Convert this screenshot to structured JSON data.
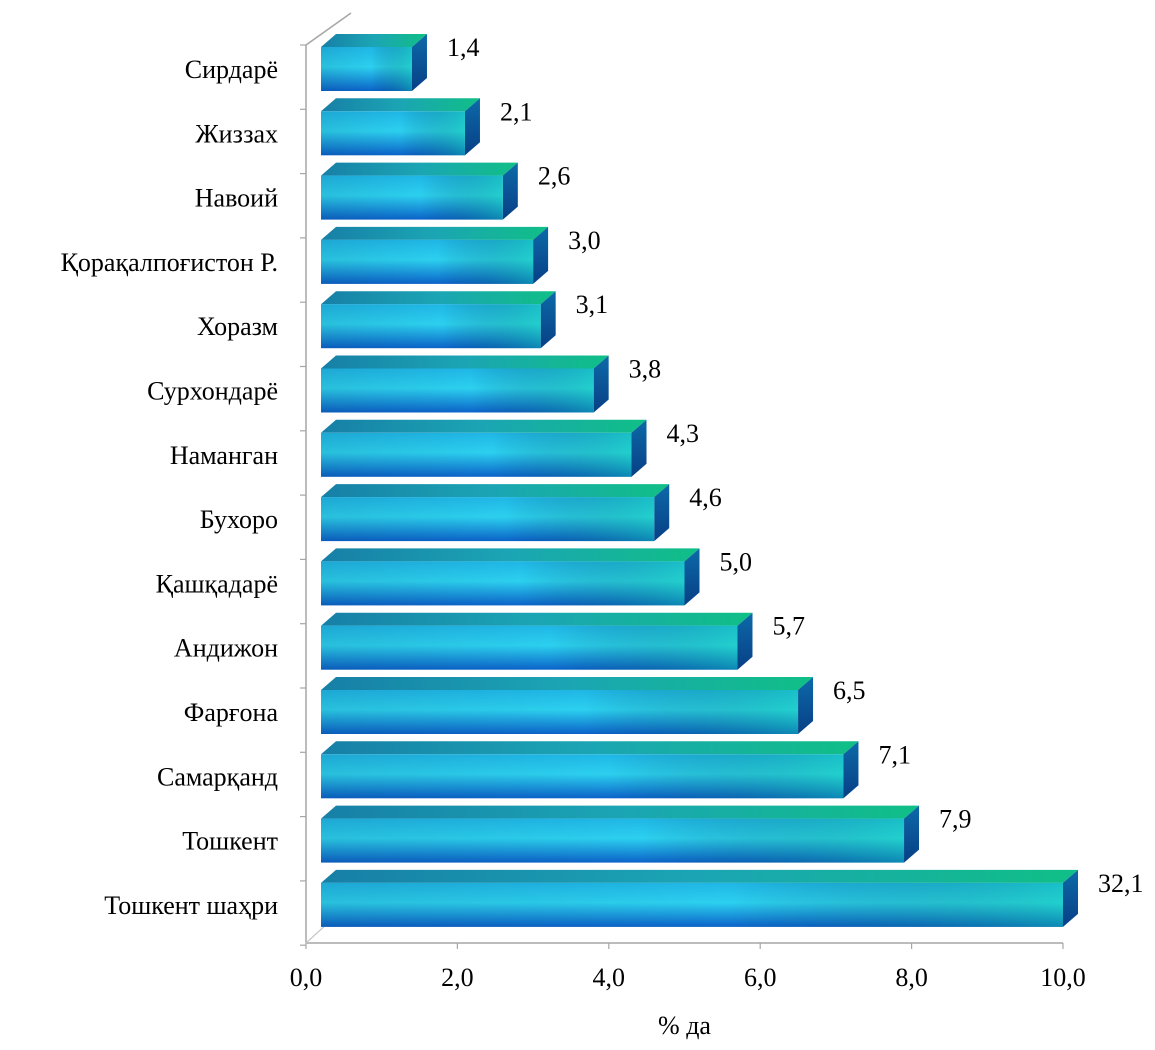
{
  "chart_data": {
    "type": "bar",
    "orientation": "horizontal",
    "style": "3d",
    "categories": [
      "Сирдарё",
      "Жиззах",
      "Навоий",
      "Қорақалпоғистон Р.",
      "Хоразм",
      "Сурхондарё",
      "Наманган",
      "Бухоро",
      "Қашқадарё",
      "Андижон",
      "Фарғона",
      "Самарқанд",
      "Тошкент",
      "Тошкент шаҳри"
    ],
    "values": [
      1.4,
      2.1,
      2.6,
      3.0,
      3.1,
      3.8,
      4.3,
      4.6,
      5.0,
      5.7,
      6.5,
      7.1,
      7.9,
      32.1
    ],
    "data_labels": [
      "1,4",
      "2,1",
      "2,6",
      "3,0",
      "3,1",
      "3,8",
      "4,3",
      "4,6",
      "5,0",
      "5,7",
      "6,5",
      "7,1",
      "7,9",
      "32,1"
    ],
    "clipped_at_axis_max": true,
    "xlabel": "% да",
    "xlim": [
      0,
      10
    ],
    "xticks": [
      "0,0",
      "2,0",
      "4,0",
      "6,0",
      "8,0",
      "10,0"
    ],
    "grid": false,
    "legend": "none",
    "colors": {
      "bar_front_light": "#29c9ec",
      "bar_front_dark": "#0a62c8",
      "bar_top": "#1a9bb8",
      "bar_top_accent": "#0fb88a",
      "bar_side": "#0b4e94",
      "axis": "#a6a6a6"
    }
  }
}
